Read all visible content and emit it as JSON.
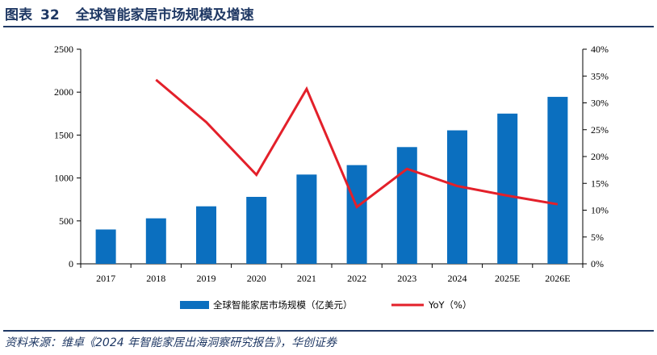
{
  "figure": {
    "label": "图表",
    "number": "32",
    "title": "全球智能家居市场规模及增速"
  },
  "source": "资料来源：维卓《2024 年智能家居出海洞察研究报告》，华创证券",
  "colors": {
    "bar": "#0b6fbf",
    "line": "#e3202a",
    "header": "#1f3864"
  },
  "chart_data": {
    "type": "bar",
    "categories": [
      "2017",
      "2018",
      "2019",
      "2020",
      "2021",
      "2022",
      "2023",
      "2024",
      "2025E",
      "2026E"
    ],
    "series": [
      {
        "name": "全球智能家居市场规模（亿美元）",
        "type": "bar",
        "axis": "left",
        "values": [
          400,
          530,
          670,
          780,
          1040,
          1150,
          1360,
          1555,
          1750,
          1945
        ]
      },
      {
        "name": "YoY（%）",
        "type": "line",
        "axis": "right",
        "values": [
          null,
          34.3,
          26.4,
          16.6,
          32.6,
          10.6,
          17.7,
          14.5,
          12.7,
          11.1
        ]
      }
    ],
    "y_left": {
      "min": 0,
      "max": 2500,
      "step": 500,
      "ticks": [
        "0",
        "500",
        "1000",
        "1500",
        "2000",
        "2500"
      ]
    },
    "y_right": {
      "min": 0,
      "max": 40,
      "step": 5,
      "ticks": [
        "0%",
        "5%",
        "10%",
        "15%",
        "20%",
        "25%",
        "30%",
        "35%",
        "40%"
      ]
    },
    "legend": {
      "position": "bottom"
    },
    "grid": false
  }
}
